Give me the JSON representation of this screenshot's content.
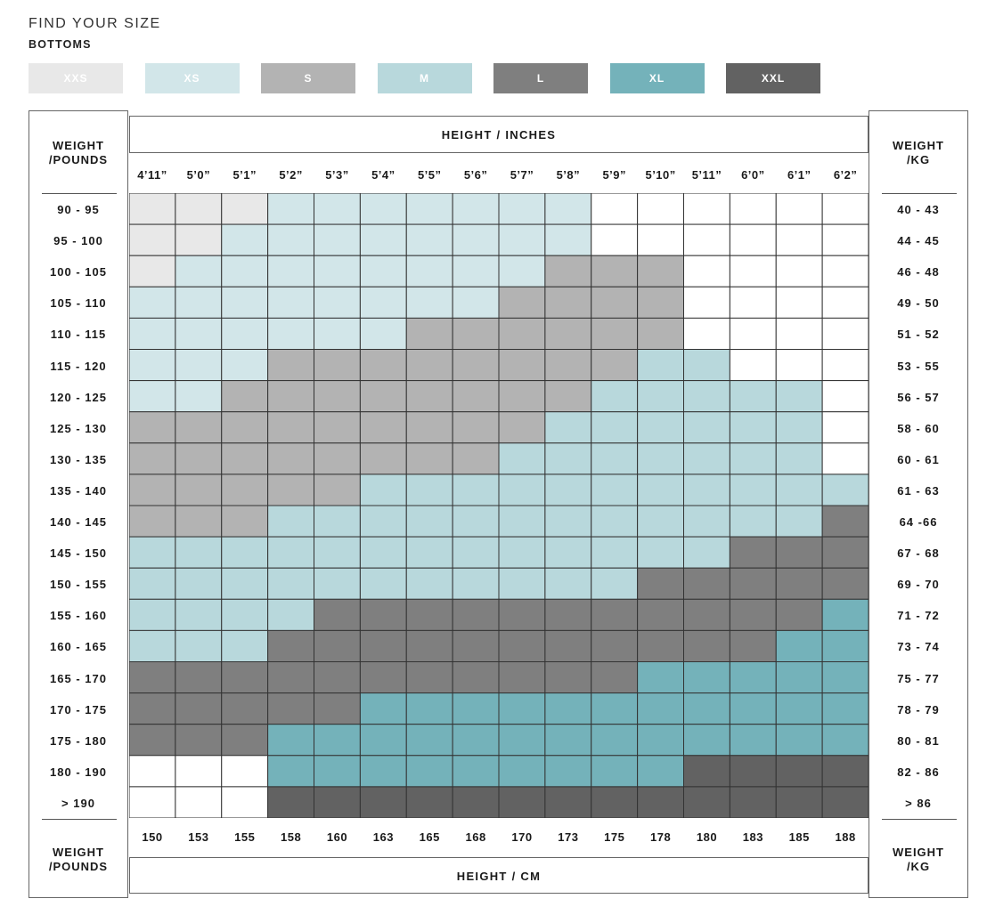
{
  "page": {
    "title": "FIND YOUR SIZE",
    "subtitle": "BOTTOMS"
  },
  "sizes": [
    {
      "key": "XXS",
      "label": "XXS",
      "color": "#e8e8e8"
    },
    {
      "key": "XS",
      "label": "XS",
      "color": "#d2e6e9"
    },
    {
      "key": "S",
      "label": "S",
      "color": "#b3b3b3"
    },
    {
      "key": "M",
      "label": "M",
      "color": "#b8d8dc"
    },
    {
      "key": "L",
      "label": "L",
      "color": "#7f7f7f"
    },
    {
      "key": "XL",
      "label": "XL",
      "color": "#74b2ba"
    },
    {
      "key": "XXL",
      "label": "XXL",
      "color": "#626262"
    }
  ],
  "axes": {
    "top_title": "HEIGHT / INCHES",
    "bottom_title": "HEIGHT / CM",
    "left_title": "WEIGHT\n/POUNDS",
    "right_title": "WEIGHT\n/KG"
  },
  "chart_data": {
    "type": "heatmap",
    "title": "FIND YOUR SIZE",
    "subtitle": "BOTTOMS",
    "heights_in": [
      "4’11”",
      "5’0”",
      "5’1”",
      "5’2”",
      "5’3”",
      "5’4”",
      "5’5”",
      "5’6”",
      "5’7”",
      "5’8”",
      "5’9”",
      "5’10”",
      "5’11”",
      "6’0”",
      "6’1”",
      "6’2”"
    ],
    "heights_cm": [
      "150",
      "153",
      "155",
      "158",
      "160",
      "163",
      "165",
      "168",
      "170",
      "173",
      "175",
      "178",
      "180",
      "183",
      "185",
      "188"
    ],
    "weights_lb": [
      "90 - 95",
      "95 - 100",
      "100 - 105",
      "105 - 110",
      "110 - 115",
      "115 - 120",
      "120 - 125",
      "125 - 130",
      "130 - 135",
      "135 - 140",
      "140 - 145",
      "145 - 150",
      "150 - 155",
      "155 - 160",
      "160 - 165",
      "165 - 170",
      "170 - 175",
      "175 - 180",
      "180 - 190",
      "> 190"
    ],
    "weights_kg": [
      "40 - 43",
      "44 - 45",
      "46 - 48",
      "49 - 50",
      "51 - 52",
      "53 - 55",
      "56 - 57",
      "58 - 60",
      "60 - 61",
      "61 - 63",
      "64 -66",
      "67 - 68",
      "69 - 70",
      "71 - 72",
      "73 - 74",
      "75 - 77",
      "78 - 79",
      "80 - 81",
      "82 - 86",
      "> 86"
    ],
    "legend": [
      "XXS",
      "XS",
      "S",
      "M",
      "L",
      "XL",
      "XXL"
    ],
    "grid": [
      [
        "XXS",
        "XXS",
        "XXS",
        "XS",
        "XS",
        "XS",
        "XS",
        "XS",
        "XS",
        "XS",
        "",
        "",
        "",
        "",
        "",
        ""
      ],
      [
        "XXS",
        "XXS",
        "XS",
        "XS",
        "XS",
        "XS",
        "XS",
        "XS",
        "XS",
        "XS",
        "",
        "",
        "",
        "",
        "",
        ""
      ],
      [
        "XXS",
        "XS",
        "XS",
        "XS",
        "XS",
        "XS",
        "XS",
        "XS",
        "XS",
        "S",
        "S",
        "S",
        "",
        "",
        "",
        ""
      ],
      [
        "XS",
        "XS",
        "XS",
        "XS",
        "XS",
        "XS",
        "XS",
        "XS",
        "S",
        "S",
        "S",
        "S",
        "",
        "",
        "",
        ""
      ],
      [
        "XS",
        "XS",
        "XS",
        "XS",
        "XS",
        "XS",
        "S",
        "S",
        "S",
        "S",
        "S",
        "S",
        "",
        "",
        "",
        ""
      ],
      [
        "XS",
        "XS",
        "XS",
        "S",
        "S",
        "S",
        "S",
        "S",
        "S",
        "S",
        "S",
        "M",
        "M",
        "",
        "",
        ""
      ],
      [
        "XS",
        "XS",
        "S",
        "S",
        "S",
        "S",
        "S",
        "S",
        "S",
        "S",
        "M",
        "M",
        "M",
        "M",
        "M",
        ""
      ],
      [
        "S",
        "S",
        "S",
        "S",
        "S",
        "S",
        "S",
        "S",
        "S",
        "M",
        "M",
        "M",
        "M",
        "M",
        "M",
        ""
      ],
      [
        "S",
        "S",
        "S",
        "S",
        "S",
        "S",
        "S",
        "S",
        "M",
        "M",
        "M",
        "M",
        "M",
        "M",
        "M",
        ""
      ],
      [
        "S",
        "S",
        "S",
        "S",
        "S",
        "M",
        "M",
        "M",
        "M",
        "M",
        "M",
        "M",
        "M",
        "M",
        "M",
        "M"
      ],
      [
        "S",
        "S",
        "S",
        "M",
        "M",
        "M",
        "M",
        "M",
        "M",
        "M",
        "M",
        "M",
        "M",
        "M",
        "M",
        "L"
      ],
      [
        "M",
        "M",
        "M",
        "M",
        "M",
        "M",
        "M",
        "M",
        "M",
        "M",
        "M",
        "M",
        "M",
        "L",
        "L",
        "L"
      ],
      [
        "M",
        "M",
        "M",
        "M",
        "M",
        "M",
        "M",
        "M",
        "M",
        "M",
        "M",
        "L",
        "L",
        "L",
        "L",
        "L"
      ],
      [
        "M",
        "M",
        "M",
        "M",
        "L",
        "L",
        "L",
        "L",
        "L",
        "L",
        "L",
        "L",
        "L",
        "L",
        "L",
        "XL"
      ],
      [
        "M",
        "M",
        "M",
        "L",
        "L",
        "L",
        "L",
        "L",
        "L",
        "L",
        "L",
        "L",
        "L",
        "L",
        "XL",
        "XL"
      ],
      [
        "L",
        "L",
        "L",
        "L",
        "L",
        "L",
        "L",
        "L",
        "L",
        "L",
        "L",
        "XL",
        "XL",
        "XL",
        "XL",
        "XL"
      ],
      [
        "L",
        "L",
        "L",
        "L",
        "L",
        "XL",
        "XL",
        "XL",
        "XL",
        "XL",
        "XL",
        "XL",
        "XL",
        "XL",
        "XL",
        "XL"
      ],
      [
        "L",
        "L",
        "L",
        "XL",
        "XL",
        "XL",
        "XL",
        "XL",
        "XL",
        "XL",
        "XL",
        "XL",
        "XL",
        "XL",
        "XL",
        "XL"
      ],
      [
        "",
        "",
        "",
        "XL",
        "XL",
        "XL",
        "XL",
        "XL",
        "XL",
        "XL",
        "XL",
        "XL",
        "XXL",
        "XXL",
        "XXL",
        "XXL"
      ],
      [
        "",
        "",
        "",
        "XXL",
        "XXL",
        "XXL",
        "XXL",
        "XXL",
        "XXL",
        "XXL",
        "XXL",
        "XXL",
        "XXL",
        "XXL",
        "XXL",
        "XXL"
      ]
    ]
  }
}
